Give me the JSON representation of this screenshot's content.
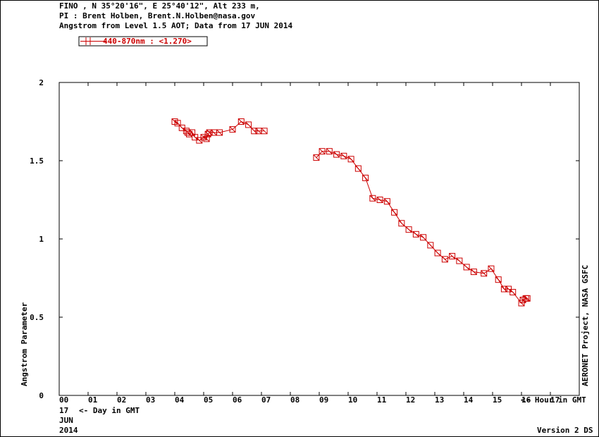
{
  "header": {
    "line1": "FINO , N 35°20'16\", E 25°40'12\", Alt 233 m,",
    "line2": "PI : Brent Holben, Brent.N.Holben@nasa.gov",
    "line3": "Angstrom from Level 1.5 AOT; Data from 17 JUN 2014"
  },
  "legend": {
    "label": "440-870nm  : <1.270>"
  },
  "side_label": "AERONET Project, NASA GSFC",
  "axis_notes": {
    "hour_note": "<- Hour in GMT",
    "day_prefix": "17",
    "day_note": "<- Day in GMT",
    "month": "JUN",
    "year": "2014"
  },
  "footer": {
    "version": "Version 2 DS"
  },
  "colors": {
    "series": "#cc0000",
    "axis": "#000000",
    "background": "#ffffff"
  },
  "chart_data": {
    "type": "line",
    "ylabel": "Angstrom Parameter",
    "xlabel": "",
    "xlim": [
      0,
      18
    ],
    "ylim": [
      0,
      2
    ],
    "x_ticks": [
      "00",
      "01",
      "02",
      "03",
      "04",
      "05",
      "06",
      "07",
      "08",
      "09",
      "10",
      "11",
      "12",
      "13",
      "14",
      "15",
      "16",
      "17"
    ],
    "y_ticks": [
      "0",
      "0.5",
      "1",
      "1.5",
      "2"
    ],
    "series": [
      {
        "name": "440-870nm",
        "marker": "square-with-x",
        "segments": [
          [
            [
              4.0,
              1.75
            ],
            [
              4.1,
              1.74
            ],
            [
              4.25,
              1.71
            ],
            [
              4.4,
              1.69
            ],
            [
              4.45,
              1.68
            ],
            [
              4.5,
              1.67
            ],
            [
              4.6,
              1.68
            ],
            [
              4.7,
              1.65
            ],
            [
              4.85,
              1.63
            ],
            [
              5.0,
              1.65
            ],
            [
              5.1,
              1.64
            ],
            [
              5.15,
              1.67
            ],
            [
              5.2,
              1.68
            ],
            [
              5.35,
              1.68
            ],
            [
              5.55,
              1.68
            ],
            [
              6.0,
              1.7
            ],
            [
              6.3,
              1.75
            ],
            [
              6.55,
              1.73
            ],
            [
              6.75,
              1.69
            ],
            [
              6.9,
              1.69
            ],
            [
              7.1,
              1.69
            ]
          ],
          [
            [
              8.9,
              1.52
            ],
            [
              9.1,
              1.56
            ],
            [
              9.35,
              1.56
            ],
            [
              9.6,
              1.54
            ],
            [
              9.85,
              1.53
            ],
            [
              10.1,
              1.51
            ],
            [
              10.35,
              1.45
            ],
            [
              10.6,
              1.39
            ],
            [
              10.85,
              1.26
            ],
            [
              11.1,
              1.25
            ],
            [
              11.35,
              1.24
            ],
            [
              11.6,
              1.17
            ],
            [
              11.85,
              1.1
            ],
            [
              12.1,
              1.06
            ],
            [
              12.35,
              1.03
            ],
            [
              12.6,
              1.01
            ],
            [
              12.85,
              0.96
            ],
            [
              13.1,
              0.91
            ],
            [
              13.35,
              0.87
            ],
            [
              13.6,
              0.89
            ],
            [
              13.85,
              0.86
            ],
            [
              14.1,
              0.82
            ],
            [
              14.35,
              0.79
            ],
            [
              14.7,
              0.78
            ],
            [
              14.95,
              0.81
            ],
            [
              15.2,
              0.74
            ],
            [
              15.4,
              0.68
            ],
            [
              15.55,
              0.68
            ],
            [
              15.7,
              0.66
            ],
            [
              16.0,
              0.59
            ],
            [
              16.05,
              0.61
            ],
            [
              16.15,
              0.62
            ],
            [
              16.2,
              0.62
            ]
          ]
        ]
      }
    ],
    "grid": false,
    "legend_position": "top-left"
  }
}
